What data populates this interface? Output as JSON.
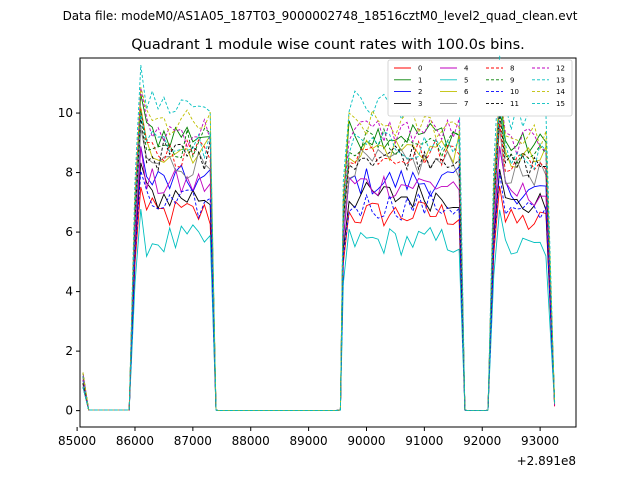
{
  "chart_data": {
    "type": "line",
    "suptitle": "Data file: modeM0/AS1A05_187T03_9000002748_18516cztM0_level2_quad_clean.evt",
    "title": "Quadrant 1 module wise count rates with 100.0s bins.",
    "xlabel": "",
    "ylabel": "",
    "x_offset_label": "+2.891e8",
    "xlim": [
      85050,
      93620
    ],
    "ylim": [
      -0.55,
      11.85
    ],
    "xticks": [
      85000,
      86000,
      87000,
      88000,
      89000,
      90000,
      91000,
      92000,
      93000
    ],
    "xtick_labels": [
      "85000",
      "86000",
      "87000",
      "88000",
      "89000",
      "90000",
      "91000",
      "92000",
      "93000"
    ],
    "yticks": [
      0,
      2,
      4,
      6,
      8,
      10
    ],
    "ytick_labels": [
      "0",
      "2",
      "4",
      "6",
      "8",
      "10"
    ],
    "legend_location": "top-right",
    "legend_columns": 4,
    "segments": [
      {
        "start": 85100,
        "end": 87400
      },
      {
        "start": 87400,
        "end": 89500,
        "zero": true
      },
      {
        "start": 89500,
        "end": 91700
      },
      {
        "start": 91700,
        "end": 92100,
        "zero": true
      },
      {
        "start": 92100,
        "end": 93250
      }
    ],
    "series": [
      {
        "name": "0",
        "color": "#ff0000",
        "dashed": false,
        "level": 6.6
      },
      {
        "name": "1",
        "color": "#008000",
        "dashed": false,
        "level": 9.3
      },
      {
        "name": "2",
        "color": "#0000ff",
        "dashed": false,
        "level": 7.7
      },
      {
        "name": "3",
        "color": "#000000",
        "dashed": false,
        "level": 7.2
      },
      {
        "name": "4",
        "color": "#bf00bf",
        "dashed": false,
        "level": 7.6
      },
      {
        "name": "5",
        "color": "#00bfbf",
        "dashed": false,
        "level": 5.7
      },
      {
        "name": "6",
        "color": "#bfbf00",
        "dashed": false,
        "level": 8.8
      },
      {
        "name": "7",
        "color": "#808080",
        "dashed": false,
        "level": 8.3
      },
      {
        "name": "8",
        "color": "#ff0000",
        "dashed": true,
        "level": 8.7
      },
      {
        "name": "9",
        "color": "#008000",
        "dashed": true,
        "level": 9.0
      },
      {
        "name": "10",
        "color": "#0000ff",
        "dashed": true,
        "level": 6.9
      },
      {
        "name": "11",
        "color": "#000000",
        "dashed": true,
        "level": 8.6
      },
      {
        "name": "12",
        "color": "#bf00bf",
        "dashed": true,
        "level": 9.4
      },
      {
        "name": "13",
        "color": "#00bfbf",
        "dashed": true,
        "level": 10.3
      },
      {
        "name": "14",
        "color": "#bfbf00",
        "dashed": true,
        "level": 9.6
      },
      {
        "name": "15",
        "color": "#00bfbf",
        "dashed": true,
        "level": 8.9
      }
    ]
  }
}
